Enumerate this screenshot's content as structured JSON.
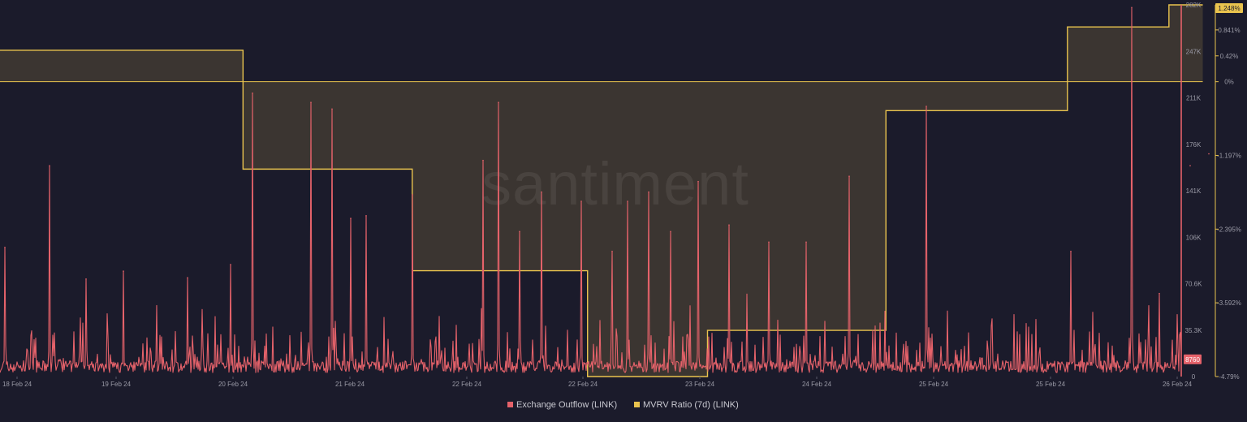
{
  "watermark": "santiment",
  "chart_data": {
    "type": "line",
    "title": "",
    "xlabel": "",
    "ylabel": "",
    "x_ticks": [
      "18 Feb 24",
      "19 Feb 24",
      "20 Feb 24",
      "21 Feb 24",
      "22 Feb 24",
      "22 Feb 24",
      "23 Feb 24",
      "24 Feb 24",
      "25 Feb 24",
      "25 Feb 24",
      "26 Feb 24"
    ],
    "x_range": [
      "2024-02-18T00:00",
      "2024-02-26T00:00"
    ],
    "legend_position": "bottom-center",
    "y_axes": {
      "outflow": {
        "ticks": [
          "282K",
          "247K",
          "211K",
          "176K",
          "141K",
          "106K",
          "70.6K",
          "35.3K",
          "0"
        ],
        "range": [
          0,
          282000
        ]
      },
      "mvrv": {
        "ticks": [
          "0.841%",
          "0.42%",
          "0%",
          "-1.197%",
          "-2.395%",
          "-3.592%",
          "-4.79%"
        ],
        "range": [
          -4.79,
          1.248
        ],
        "current_value": "1.248%"
      }
    },
    "series": [
      {
        "name": "Exchange Outflow (LINK)",
        "color": "#e5626a",
        "current_value": "8760",
        "spikes": [
          {
            "t": "2024-02-18T00:45",
            "y": 98000
          },
          {
            "t": "2024-02-18T08:00",
            "y": 160000
          },
          {
            "t": "2024-02-18T14:00",
            "y": 74000
          },
          {
            "t": "2024-02-18T20:00",
            "y": 80000
          },
          {
            "t": "2024-02-19T06:30",
            "y": 75000
          },
          {
            "t": "2024-02-19T13:30",
            "y": 85000
          },
          {
            "t": "2024-02-19T17:00",
            "y": 215000
          },
          {
            "t": "2024-02-20T02:30",
            "y": 208000
          },
          {
            "t": "2024-02-20T06:00",
            "y": 203000
          },
          {
            "t": "2024-02-20T09:00",
            "y": 120000
          },
          {
            "t": "2024-02-20T11:30",
            "y": 122000
          },
          {
            "t": "2024-02-20T19:00",
            "y": 138000
          },
          {
            "t": "2024-02-21T06:30",
            "y": 164000
          },
          {
            "t": "2024-02-21T09:00",
            "y": 208000
          },
          {
            "t": "2024-02-21T12:30",
            "y": 110000
          },
          {
            "t": "2024-02-21T16:00",
            "y": 140000
          },
          {
            "t": "2024-02-21T22:30",
            "y": 133000
          },
          {
            "t": "2024-02-22T03:30",
            "y": 95000
          },
          {
            "t": "2024-02-22T06:00",
            "y": 133000
          },
          {
            "t": "2024-02-22T09:30",
            "y": 140000
          },
          {
            "t": "2024-02-22T13:00",
            "y": 110000
          },
          {
            "t": "2024-02-22T17:30",
            "y": 148000
          },
          {
            "t": "2024-02-22T22:30",
            "y": 115000
          },
          {
            "t": "2024-02-23T05:00",
            "y": 102000
          },
          {
            "t": "2024-02-23T11:00",
            "y": 102000
          },
          {
            "t": "2024-02-23T18:00",
            "y": 152000
          },
          {
            "t": "2024-02-24T06:30",
            "y": 205000
          },
          {
            "t": "2024-02-25T06:00",
            "y": 95000
          },
          {
            "t": "2024-02-25T16:00",
            "y": 280000
          },
          {
            "t": "2024-02-25T20:30",
            "y": 63000
          },
          {
            "t": "2024-02-26T01:30",
            "y": 160000
          },
          {
            "t": "2024-02-26T04:30",
            "y": 169000
          }
        ]
      },
      {
        "name": "MVRV Ratio (7d) (LINK)",
        "color": "#e9c34e",
        "type": "step-area",
        "baseline": 0,
        "steps": [
          {
            "t": "2024-02-18T00:00",
            "y": 0.51
          },
          {
            "t": "2024-02-19T15:30",
            "y": -1.42
          },
          {
            "t": "2024-02-20T19:00",
            "y": -3.07
          },
          {
            "t": "2024-02-21T23:30",
            "y": -4.79
          },
          {
            "t": "2024-02-22T19:00",
            "y": -4.04
          },
          {
            "t": "2024-02-24T00:00",
            "y": -0.47
          },
          {
            "t": "2024-02-25T05:30",
            "y": 0.89
          },
          {
            "t": "2024-02-25T22:00",
            "y": 1.248
          },
          {
            "t": "2024-02-26T03:30",
            "y": 1.248
          }
        ]
      }
    ]
  }
}
